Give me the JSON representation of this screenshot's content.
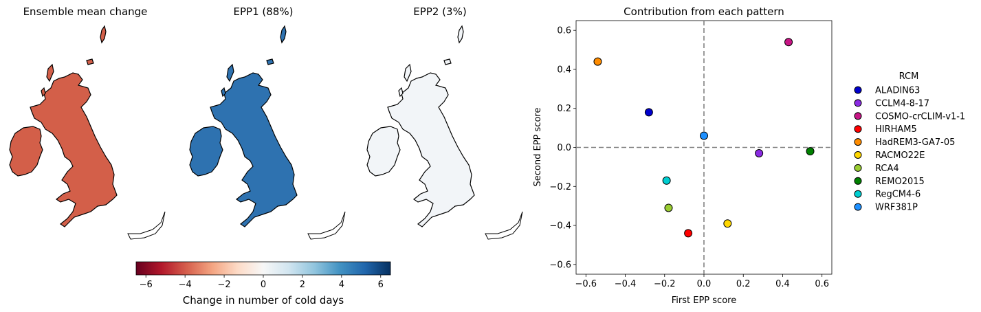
{
  "panels": [
    {
      "title": "Ensemble mean change",
      "fill": "#d35f49"
    },
    {
      "title": "EPP1 (88%)",
      "fill": "#2e72b0"
    },
    {
      "title": "EPP2 (3%)",
      "fill": "#f2f5f8"
    }
  ],
  "colorbar": {
    "label": "Change in number of cold days",
    "ticks": [
      "−6",
      "−4",
      "−2",
      "0",
      "2",
      "4",
      "6"
    ],
    "tick_values": [
      -6,
      -4,
      -2,
      0,
      2,
      4,
      6
    ],
    "range": [
      -6.5,
      6.5
    ],
    "colormap": "RdBu",
    "colors": [
      "#67001f",
      "#b2182b",
      "#d6604d",
      "#f4a582",
      "#fddbc7",
      "#f7f7f7",
      "#d1e5f0",
      "#92c5de",
      "#4393c3",
      "#2166ac",
      "#053061"
    ]
  },
  "chart_data": {
    "type": "scatter",
    "title": "Contribution from each pattern",
    "xlabel": "First EPP score",
    "ylabel": "Second EPP score",
    "xlim": [
      -0.65,
      0.65
    ],
    "ylim": [
      -0.65,
      0.65
    ],
    "xticks": [
      "−0.6",
      "−0.4",
      "−0.2",
      "0.0",
      "0.2",
      "0.4",
      "0.6"
    ],
    "xtick_values": [
      -0.6,
      -0.4,
      -0.2,
      0.0,
      0.2,
      0.4,
      0.6
    ],
    "yticks": [
      "−0.6",
      "−0.4",
      "−0.2",
      "0.0",
      "0.2",
      "0.4",
      "0.6"
    ],
    "ytick_values": [
      -0.6,
      -0.4,
      -0.2,
      0.0,
      0.2,
      0.4,
      0.6
    ],
    "reference_lines": {
      "x": 0,
      "y": 0,
      "style": "dashed",
      "color": "#808080"
    },
    "grid": false,
    "legend": {
      "title": "RCM",
      "placement": "right-outside"
    },
    "points": [
      {
        "name": "ALADIN63",
        "x": -0.28,
        "y": 0.18,
        "color": "#0000cd"
      },
      {
        "name": "CCLM4-8-17",
        "x": 0.28,
        "y": -0.03,
        "color": "#8a2be2"
      },
      {
        "name": "COSMO-crCLIM-v1-1",
        "x": 0.43,
        "y": 0.54,
        "color": "#c71585"
      },
      {
        "name": "HIRHAM5",
        "x": -0.08,
        "y": -0.44,
        "color": "#ff0000"
      },
      {
        "name": "HadREM3-GA7-05",
        "x": -0.54,
        "y": 0.44,
        "color": "#ff8c00"
      },
      {
        "name": "RACMO22E",
        "x": 0.12,
        "y": -0.39,
        "color": "#ffd700"
      },
      {
        "name": "RCA4",
        "x": -0.18,
        "y": -0.31,
        "color": "#9acd32"
      },
      {
        "name": "REMO2015",
        "x": 0.54,
        "y": -0.02,
        "color": "#008000"
      },
      {
        "name": "RegCM4-6",
        "x": -0.19,
        "y": -0.17,
        "color": "#00ced1"
      },
      {
        "name": "WRF381P",
        "x": 0.0,
        "y": 0.06,
        "color": "#1e90ff"
      }
    ]
  }
}
